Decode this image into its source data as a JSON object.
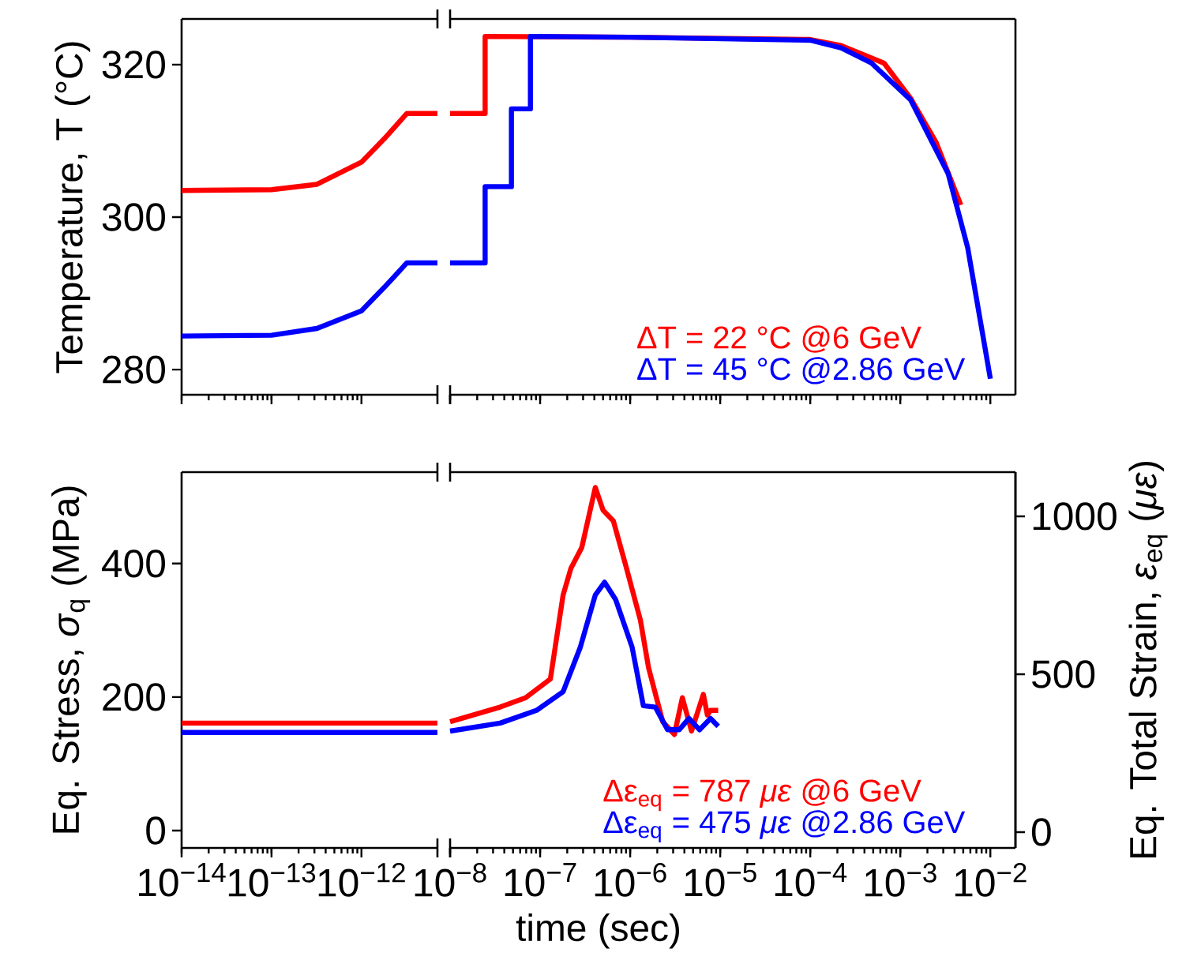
{
  "chart_data": [
    {
      "type": "line",
      "ylabel": "Temperature, T (°C)",
      "log": "x",
      "xlim": [
        1e-14,
        7e-12
      ],
      "ylim": [
        276.7,
        326
      ],
      "tick_labels": "y",
      "xticks": [
        {
          "value": 1e-14,
          "label": null
        },
        {
          "value": 1e-13,
          "label": null
        },
        {
          "value": 1e-12,
          "label": null
        }
      ],
      "yticks": [
        280,
        300,
        320
      ],
      "grid": false,
      "marker": "none",
      "line_style": "solid",
      "series": [
        {
          "color": "#ff0000",
          "x": [
            1e-14,
            1e-13,
            3.2e-13,
            1e-12,
            1.8e-12,
            3.2e-12,
            7e-12
          ],
          "values": [
            303.5,
            303.6,
            304.3,
            307.2,
            310.3,
            313.6,
            313.6
          ]
        },
        {
          "color": "#0000ff",
          "x": [
            1e-14,
            1e-13,
            3.2e-13,
            1e-12,
            1.8e-12,
            3.2e-12,
            7e-12
          ],
          "values": [
            284.4,
            284.5,
            285.4,
            287.7,
            290.8,
            294.0,
            294.0
          ]
        }
      ]
    },
    {
      "type": "line",
      "log": "x",
      "xlim": [
        1e-08,
        0.019
      ],
      "ylim": [
        276.7,
        326
      ],
      "tick_labels": false,
      "xticks": [
        {
          "value": 1e-08,
          "label": null
        },
        {
          "value": 1e-07,
          "label": null
        },
        {
          "value": 1e-06,
          "label": null
        },
        {
          "value": 1e-05,
          "label": null
        },
        {
          "value": 0.0001,
          "label": null
        },
        {
          "value": 0.001,
          "label": null
        },
        {
          "value": 0.01,
          "label": null
        }
      ],
      "grid": false,
      "marker": "none",
      "line_style": "solid",
      "legend": "bottom right",
      "series": [
        {
          "name": "ΔT = 22 °C @6 GeV",
          "color": "#ff0000",
          "x": [
            1e-08,
            2.45e-08,
            2.45e-08,
            1e-06,
            0.0001,
            0.00022,
            0.00066,
            0.0013,
            0.0025,
            0.0047
          ],
          "values": [
            313.6,
            313.6,
            323.7,
            323.6,
            323.3,
            322.5,
            320.2,
            315.6,
            309.8,
            301.6
          ]
        },
        {
          "name": "ΔT = 45 °C @2.86 GeV",
          "color": "#0000ff",
          "x": [
            1e-08,
            2.45e-08,
            2.45e-08,
            4.8e-08,
            4.8e-08,
            7.8e-08,
            7.8e-08,
            1e-06,
            0.0001,
            0.00022,
            0.00048,
            0.0013,
            0.0034,
            0.0056,
            0.01
          ],
          "values": [
            294.0,
            294.0,
            304.0,
            304.0,
            314.2,
            314.2,
            323.7,
            323.6,
            323.2,
            322.2,
            320.2,
            315.4,
            305.7,
            296.0,
            278.8
          ]
        }
      ]
    },
    {
      "type": "line",
      "ylabel": "Eq. Stress, *σ*$_{q}$ (MPa)",
      "log": "x",
      "xlim": [
        1e-14,
        7e-12
      ],
      "ylim": [
        -26,
        537
      ],
      "xticks": [
        {
          "value": 1e-14,
          "label": "10$^{−14}$"
        },
        {
          "value": 1e-13,
          "label": "10$^{−13}$"
        },
        {
          "value": 1e-12,
          "label": "10$^{−12}$"
        }
      ],
      "yticks": [
        0,
        200,
        400
      ],
      "grid": false,
      "marker": "none",
      "line_style": "solid",
      "series": [
        {
          "color": "#ff0000",
          "x": [
            1e-14,
            7e-12
          ],
          "values": [
            161,
            161
          ]
        },
        {
          "color": "#0000ff",
          "x": [
            1e-14,
            7e-12
          ],
          "values": [
            147,
            147
          ]
        }
      ]
    },
    {
      "type": "line",
      "xlabel": "time (sec)",
      "y2label": "Eq. Total Strain, *ε*$_{eq}$ (*με*)",
      "log": "x",
      "xlim": [
        1e-08,
        0.019
      ],
      "ylim": [
        -26,
        537
      ],
      "tick_labels": "x",
      "xticks": [
        {
          "value": 1e-08,
          "label": "10$^{−8}$"
        },
        {
          "value": 1e-07,
          "label": "10$^{−7}$"
        },
        {
          "value": 1e-06,
          "label": "10$^{−6}$"
        },
        {
          "value": 1e-05,
          "label": "10$^{−5}$"
        },
        {
          "value": 0.0001,
          "label": "10$^{−4}$"
        },
        {
          "value": 0.001,
          "label": "10$^{−3}$"
        },
        {
          "value": 0.01,
          "label": "10$^{−2}$"
        }
      ],
      "y2lim": [
        -50,
        1140
      ],
      "y2ticks": [
        {
          "value": 0,
          "label": "0"
        },
        {
          "value": 500,
          "label": "500"
        },
        {
          "value": 1000,
          "label": "1000"
        }
      ],
      "grid": false,
      "marker": "none",
      "line_style": "solid",
      "legend": "bottom right",
      "series": [
        {
          "name": "Δε$_{eq}$ = 787 *με* @6 GeV",
          "color": "#ff0000",
          "x": [
            1e-08,
            3.6e-08,
            6.9e-08,
            1.3e-07,
            1.8e-07,
            2.2e-07,
            2.9e-07,
            4.1e-07,
            5e-07,
            6.5e-07,
            9.1e-07,
            1.3e-06,
            1.6e-06,
            2.3e-06,
            3.1e-06,
            3.8e-06,
            4.8e-06,
            6.5e-06,
            7.2e-06,
            7.8e-06,
            9.5e-06
          ],
          "values": [
            163,
            185,
            199,
            227,
            353,
            393,
            424,
            514,
            480,
            464,
            393,
            315,
            244,
            163,
            144,
            199,
            149,
            204,
            173,
            180,
            180
          ]
        },
        {
          "name": "Δε$_{eq}$ = 475 *με* @2.86 GeV",
          "color": "#0000ff",
          "x": [
            1e-08,
            3.6e-08,
            9.1e-08,
            1.8e-07,
            2.8e-07,
            4.1e-07,
            5.2e-07,
            6.9e-07,
            1.05e-06,
            1.4e-06,
            1.9e-06,
            2.6e-06,
            3.5e-06,
            4.5e-06,
            5.9e-06,
            7.8e-06,
            9.5e-06
          ],
          "values": [
            149,
            161,
            180,
            208,
            275,
            353,
            372,
            346,
            275,
            187,
            185,
            151,
            151,
            168,
            151,
            168,
            156
          ]
        }
      ]
    }
  ]
}
